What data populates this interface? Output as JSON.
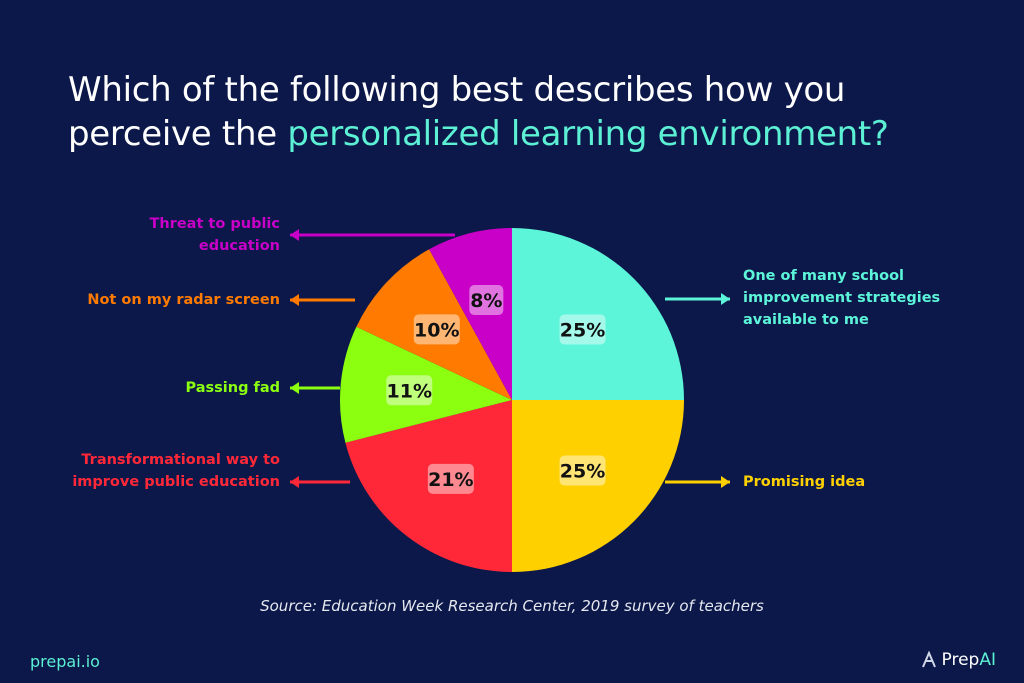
{
  "title": {
    "prefix": "Which of the following best describes how you perceive the ",
    "highlight": "personalized learning environment?"
  },
  "chart_data": {
    "type": "pie",
    "title": "Which of the following best describes how you perceive the personalized learning environment?",
    "slices": [
      {
        "label": "One of many school improvement strategies available to me",
        "value": 25,
        "display": "25%",
        "color": "#5cf5d9",
        "side": "right"
      },
      {
        "label": "Promising idea",
        "value": 25,
        "display": "25%",
        "color": "#ffd000",
        "side": "right"
      },
      {
        "label": "Transformational way to improve public education",
        "value": 21,
        "display": "21%",
        "color": "#ff2838",
        "side": "left"
      },
      {
        "label": "Passing fad",
        "value": 11,
        "display": "11%",
        "color": "#8cff10",
        "side": "left"
      },
      {
        "label": "Not on my radar screen",
        "value": 10,
        "display": "10%",
        "color": "#ff7a00",
        "side": "left"
      },
      {
        "label": "Threat to public education",
        "value": 8,
        "display": "8%",
        "color": "#c800c8",
        "side": "left"
      }
    ],
    "start_angle": "12 o'clock",
    "direction": "clockwise"
  },
  "source": "Source: Education Week Research Center, 2019 survey of teachers",
  "footer": {
    "site": "prepai.io",
    "logo_prefix": "Prep",
    "logo_suffix": "AI"
  },
  "colors": {
    "background": "#0b1849",
    "accent": "#5cf0d4"
  }
}
